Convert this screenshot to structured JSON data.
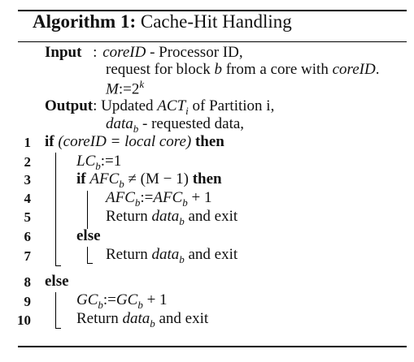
{
  "algorithm": {
    "label": "Algorithm 1:",
    "title": "Cache-Hit Handling"
  },
  "input": {
    "keyword": "Input",
    "sep": ":",
    "line1_var": "coreID",
    "line1_rest": " - Processor ID,",
    "line2_pre": "request for block ",
    "line2_var1": "b",
    "line2_mid": " from a core with ",
    "line2_var2": "coreID",
    "line2_end": ".",
    "line3_var": "M",
    "line3_mid": ":=2",
    "line3_sup": "k"
  },
  "output": {
    "keyword": "Output",
    "sep": ":",
    "line1_pre": "Updated ",
    "line1_var": "ACT",
    "line1_sub": "i",
    "line1_rest": " of Partition i,",
    "line2_var": "data",
    "line2_sub": "b",
    "line2_rest": " - requested data,"
  },
  "lines": [
    {
      "num": "1",
      "kw_if": "if",
      "cond": "(coreID = local core)",
      "kw_then": "then"
    },
    {
      "num": "2",
      "var": "LC",
      "sub": "b",
      "rest": ":=1"
    },
    {
      "num": "3",
      "kw_if": "if",
      "var": "AFC",
      "sub": "b",
      "op": " ≠ (M − 1) ",
      "kw_then": "then"
    },
    {
      "num": "4",
      "var": "AFC",
      "sub": "b",
      "mid": ":=",
      "var2": "AFC",
      "sub2": "b",
      "rest": " + 1"
    },
    {
      "num": "5",
      "pre": "Return ",
      "var": "data",
      "sub": "b",
      "rest": " and exit"
    },
    {
      "num": "6",
      "kw_else": "else"
    },
    {
      "num": "7",
      "pre": "Return ",
      "var": "data",
      "sub": "b",
      "rest": " and exit"
    },
    {
      "num": "8",
      "kw_else": "else"
    },
    {
      "num": "9",
      "var": "GC",
      "sub": "b",
      "mid": ":=",
      "var2": "GC",
      "sub2": "b",
      "rest": " + 1"
    },
    {
      "num": "10",
      "pre": "Return ",
      "var": "data",
      "sub": "b",
      "rest": " and exit"
    }
  ]
}
